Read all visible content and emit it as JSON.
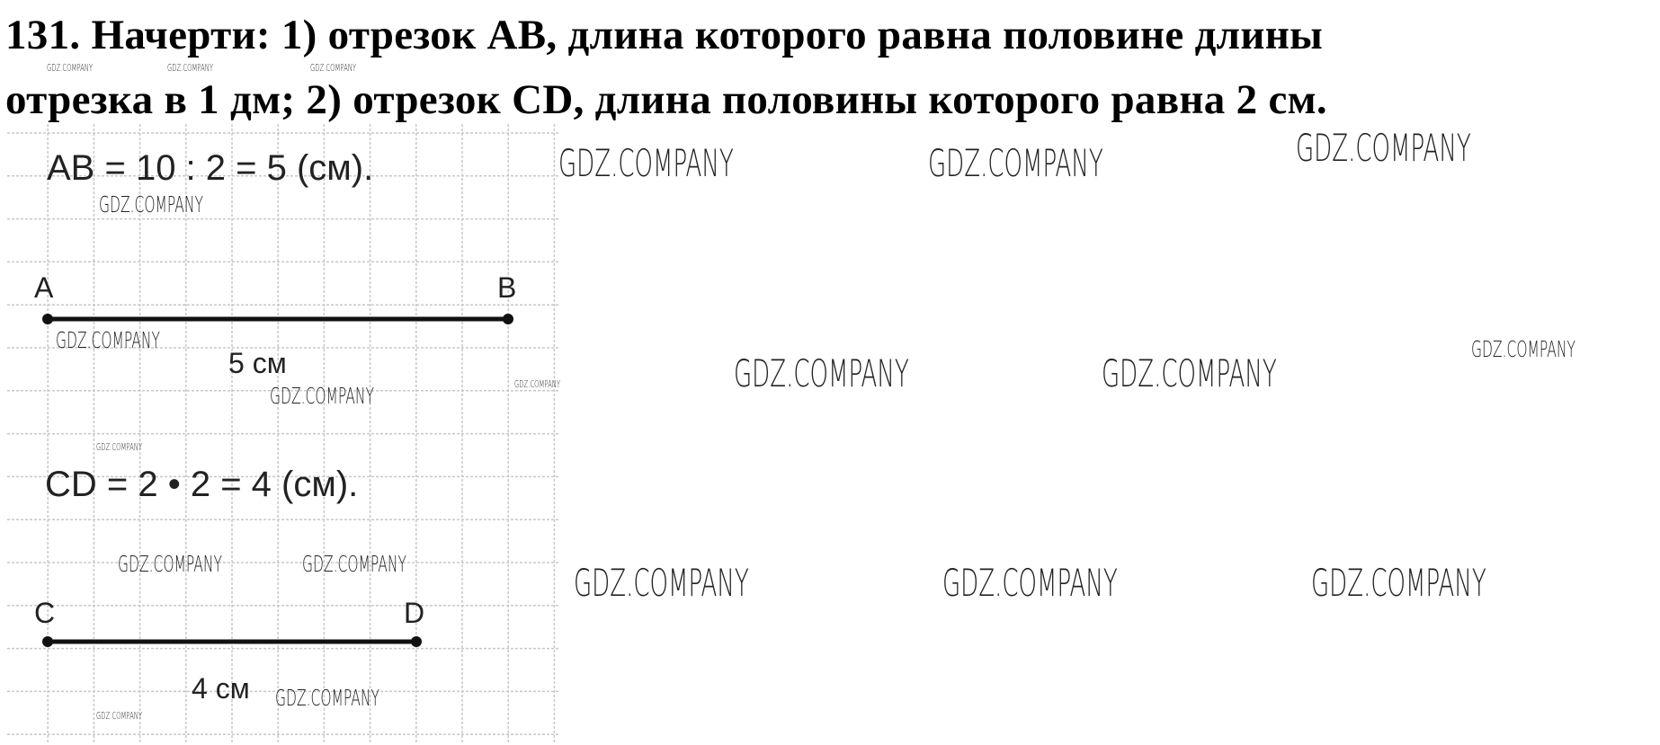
{
  "task": {
    "title_line1": "131. Начерти: 1) отрезок АВ, длина которого равна половине длины",
    "title_line2": "отрезка в 1 дм; 2) отрезок CD, длина половины которого равна 2 см."
  },
  "solution": {
    "ab_equation": "AB = 10 : 2 = 5 (см).",
    "point_a": "A",
    "point_b": "B",
    "ab_length": "5 см",
    "cd_equation": "CD = 2 • 2 = 4 (см).",
    "point_c": "C",
    "point_d": "D",
    "cd_length": "4 см"
  },
  "watermark": "GDZ.COMPANY"
}
